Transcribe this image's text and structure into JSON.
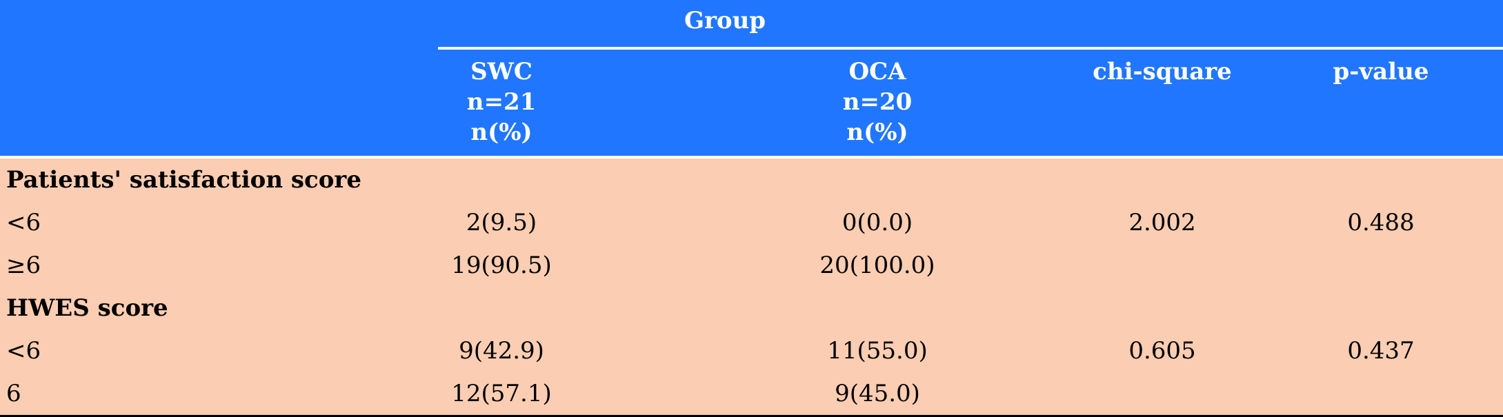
{
  "header": {
    "group_label": "Group",
    "columns": [
      {
        "lines": [
          "SWC",
          "n=21",
          "n(%)"
        ]
      },
      {
        "lines": [
          "OCA",
          "n=20",
          "n(%)"
        ]
      },
      {
        "lines": [
          "chi-square"
        ]
      },
      {
        "lines": [
          "p-value"
        ]
      }
    ]
  },
  "sections": [
    {
      "title": "Patients' satisfaction score",
      "rows": [
        {
          "label": "<6",
          "swc": "2(9.5)",
          "oca": "0(0.0)",
          "chi": "2.002",
          "p": "0.488"
        },
        {
          "label": "≥6",
          "swc": "19(90.5)",
          "oca": "20(100.0)",
          "chi": "",
          "p": ""
        }
      ]
    },
    {
      "title": "HWES score",
      "rows": [
        {
          "label": "<6",
          "swc": "9(42.9)",
          "oca": "11(55.0)",
          "chi": "0.605",
          "p": "0.437"
        },
        {
          "label": "6",
          "swc": "12(57.1)",
          "oca": "9(45.0)",
          "chi": "",
          "p": ""
        }
      ]
    }
  ],
  "colors": {
    "header_bg": "#2176ff",
    "body_bg": "#fbcdb2",
    "header_text": "#ffffff"
  }
}
